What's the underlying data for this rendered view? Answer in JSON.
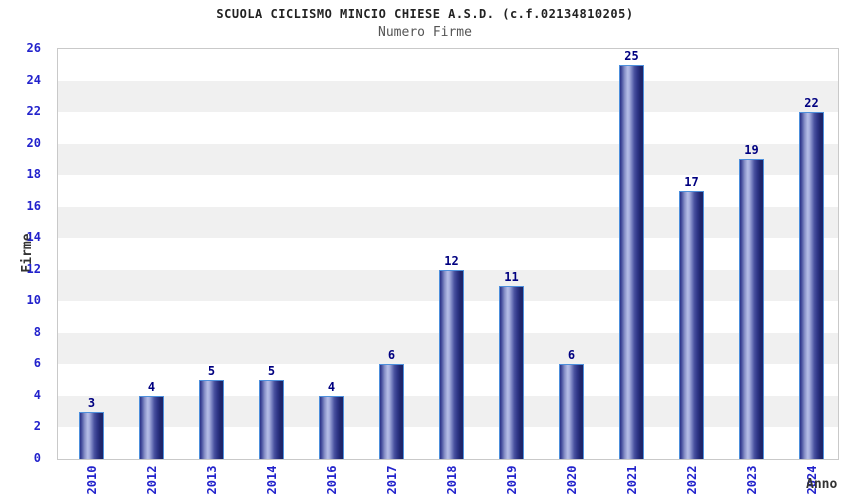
{
  "chart_data": {
    "type": "bar",
    "title": "SCUOLA CICLISMO MINCIO CHIESE A.S.D. (c.f.02134810205)",
    "subtitle": "Numero Firme",
    "xlabel": "Anno",
    "ylabel": "Firme",
    "categories": [
      "2010",
      "2012",
      "2013",
      "2014",
      "2016",
      "2017",
      "2018",
      "2019",
      "2020",
      "2021",
      "2022",
      "2023",
      "2024"
    ],
    "values": [
      3,
      4,
      5,
      5,
      4,
      6,
      12,
      11,
      6,
      25,
      17,
      19,
      22
    ],
    "ylim": [
      0,
      26
    ],
    "ytick_step": 2,
    "grid": "alternating-horizontal-bands",
    "legend": "none",
    "colors": {
      "tick_label": "#2222cc",
      "value_label": "#000080",
      "bar_dark_edge": "#1d2366",
      "bar_highlight": "#b4bce6",
      "bar_border": "#4d8fdc",
      "band_gray": "#f0f0f0",
      "band_white": "#ffffff",
      "plot_border": "#c9c9c9",
      "title_text": "#222222",
      "subtitle_text": "#555555",
      "axis_title_text": "#333333"
    }
  }
}
